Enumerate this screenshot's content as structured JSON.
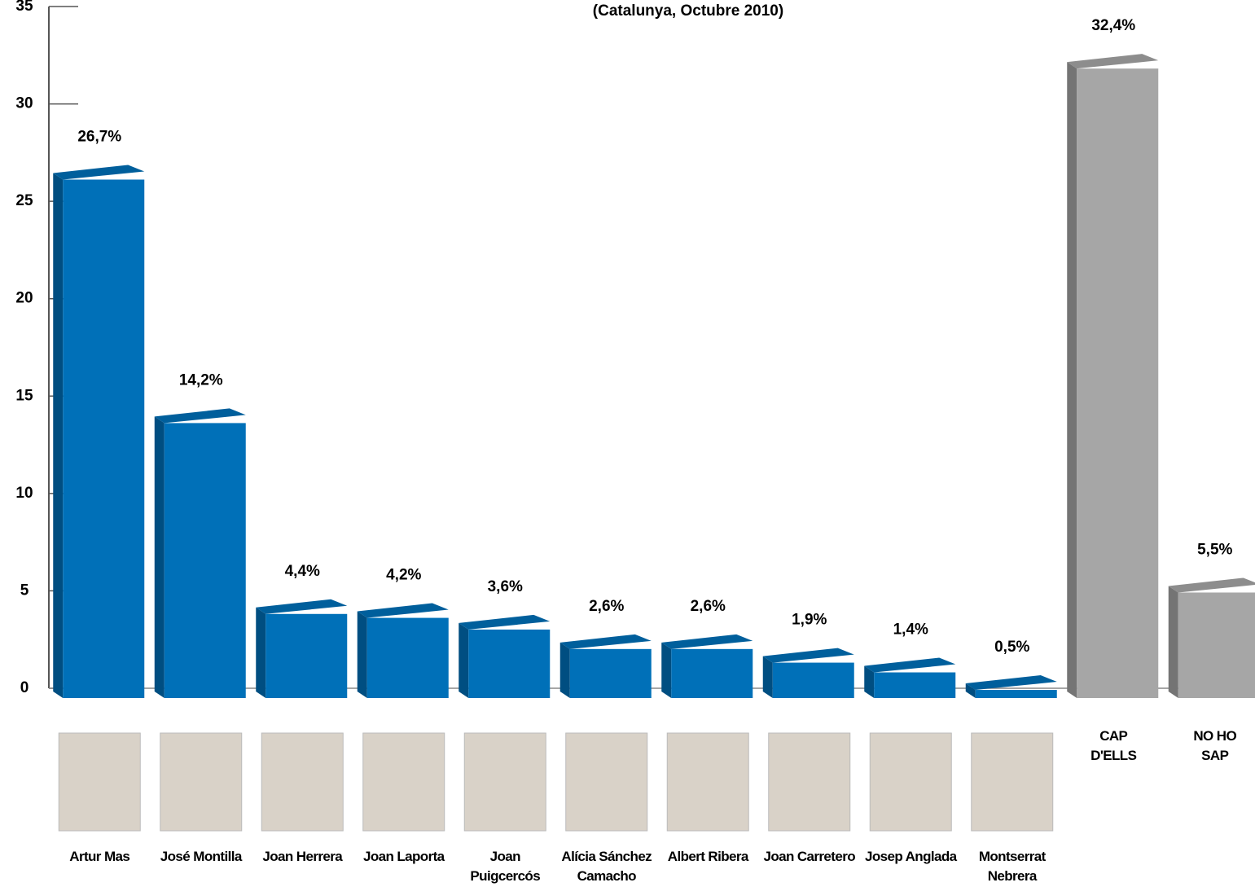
{
  "chart_data": {
    "type": "bar",
    "subtitle": "(Catalunya, Octubre 2010)",
    "categories": [
      "Artur Mas",
      "José Montilla",
      "Joan Herrera",
      "Joan Laporta",
      "Joan Puigcercós",
      "Alícia Sánchez Camacho",
      "Albert Ribera",
      "Joan Carretero",
      "Josep Anglada",
      "Montserrat Nebrera",
      "CAP D'ELLS",
      "NO HO SAP"
    ],
    "values": [
      26.7,
      14.2,
      4.4,
      4.2,
      3.6,
      2.6,
      2.6,
      1.9,
      1.4,
      0.5,
      32.4,
      5.5
    ],
    "value_labels": [
      "26,7%",
      "14,2%",
      "4,4%",
      "4,2%",
      "3,6%",
      "2,6%",
      "2,6%",
      "1,9%",
      "1,4%",
      "0,5%",
      "32,4%",
      "5,5%"
    ],
    "colors": [
      "#0070b8",
      "#0070b8",
      "#0070b8",
      "#0070b8",
      "#0070b8",
      "#0070b8",
      "#0070b8",
      "#0070b8",
      "#0070b8",
      "#0070b8",
      "#a6a6a6",
      "#a6a6a6"
    ],
    "ylim": [
      0,
      35
    ],
    "yticks": [
      0,
      5,
      10,
      15,
      20,
      25,
      30,
      35
    ]
  }
}
